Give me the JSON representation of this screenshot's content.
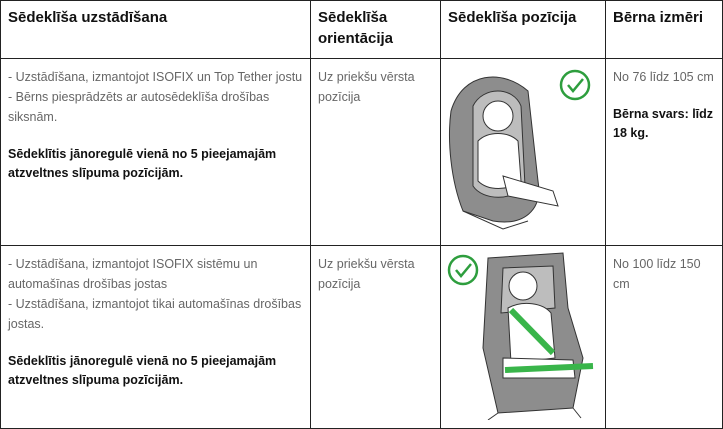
{
  "table": {
    "headers": [
      "Sēdeklīša uzstādīšana",
      "Sēdeklīša orientācija",
      "Sēdeklīša pozīcija",
      "Bērna izmēri"
    ],
    "rows": [
      {
        "installation": [
          "- Uzstādīšana, izmantojot ISOFIX un Top Tether jostu",
          "- Bērns piesprādzēts ar autosēdeklīša drošības siksnām."
        ],
        "note": "Sēdeklītis jānoregulē vienā no 5 pieejamajām atzveltnes slīpuma pozīcijām.",
        "orientation": "Uz priekšu vērsta pozīcija",
        "size": "No 76 līdz 105 cm",
        "weight": "Bērna svars: līdz 18 kg."
      },
      {
        "installation": [
          "- Uzstādīšana, izmantojot ISOFIX sistēmu un automašīnas drošības jostas",
          "- Uzstādīšana, izmantojot tikai automašīnas drošības jostas."
        ],
        "note": "Sēdeklītis jānoregulē vienā no 5 pieejamajām atzveltnes slīpuma pozīcijām.",
        "orientation": "Uz priekšu vērsta pozīcija",
        "size": "No 100 līdz 150 cm"
      }
    ]
  }
}
